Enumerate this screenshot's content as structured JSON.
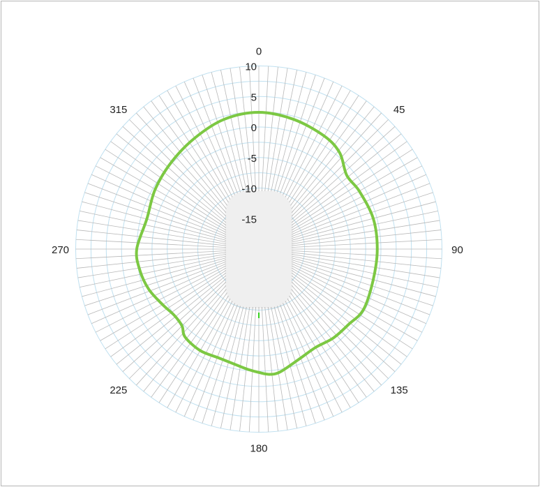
{
  "chart_data": {
    "type": "polar-line",
    "title": "",
    "angular_axis": {
      "unit": "degrees",
      "direction": "clockwise",
      "zero_at": "top",
      "spoke_step": 3,
      "labels": [
        "0",
        "45",
        "90",
        "135",
        "180",
        "225",
        "270",
        "315"
      ],
      "label_angles": [
        0,
        45,
        90,
        135,
        180,
        225,
        270,
        315
      ]
    },
    "radial_axis": {
      "range": [
        -20,
        10
      ],
      "tick_labels": [
        "10",
        "5",
        "0",
        "-5",
        "-10",
        "-15"
      ],
      "tick_values": [
        10,
        5,
        0,
        -5,
        -10,
        -15
      ],
      "ring_step": 2.5
    },
    "grid": true,
    "colors": {
      "series": "#7cc843",
      "ring": "#bfe0f0",
      "spoke": "#b8b8b8",
      "product_body": "#efefef",
      "led": "#35d21f"
    },
    "series": [
      {
        "angles": [
          0,
          15,
          30,
          40,
          50,
          60,
          75,
          90,
          105,
          120,
          130,
          140,
          150,
          160,
          170,
          175,
          180,
          185,
          190,
          200,
          210,
          220,
          225,
          232,
          240,
          250,
          260,
          270,
          285,
          300,
          315,
          330,
          345
        ],
        "values": [
          2.4,
          2.0,
          1.4,
          0.6,
          -1.2,
          -1.0,
          -0.6,
          -0.6,
          -0.6,
          -0.2,
          -0.8,
          -1.0,
          -1.4,
          -0.8,
          0.4,
          0.6,
          0.2,
          -0.2,
          -0.6,
          -1.0,
          -0.8,
          -1.2,
          -2.2,
          -2.4,
          -1.8,
          -0.8,
          -0.2,
          0.0,
          -1.0,
          -0.4,
          0.2,
          1.0,
          2.0
        ]
      }
    ],
    "product_icon": "access-point-icon"
  }
}
